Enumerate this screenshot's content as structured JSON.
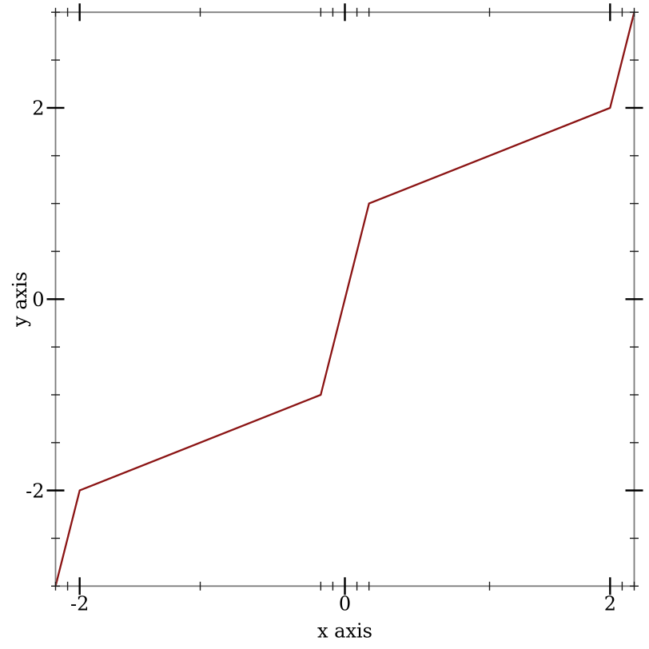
{
  "chart_data": {
    "type": "line",
    "title": "",
    "xlabel": "x axis",
    "ylabel": "y axis",
    "x_range": [
      -3,
      3
    ],
    "y_range": [
      -3,
      3
    ],
    "grid": false,
    "legend": "none",
    "series": [
      {
        "name": "y = x (rendered under x-axis stretch transform)",
        "color": "#8b1414",
        "line_width": 2.3,
        "points": [
          [
            -3,
            -3
          ],
          [
            -2,
            -2
          ],
          [
            -1,
            -1
          ],
          [
            0,
            0
          ],
          [
            1,
            1
          ],
          [
            2,
            2
          ],
          [
            3,
            3
          ]
        ]
      }
    ],
    "x_axis": {
      "label": "x axis",
      "major_ticks": [
        {
          "value": -2,
          "label": "-2"
        },
        {
          "value": 0,
          "label": "0"
        },
        {
          "value": 2,
          "label": "2"
        }
      ],
      "minor_ticks": [
        -3,
        -2.5,
        -1.5,
        -1,
        -0.5,
        0.5,
        1,
        1.5,
        2.5,
        3
      ],
      "transform": {
        "type": "piecewise_linear",
        "description": "axis transform: intervals [-2,-1] and [1,2] stretched 10x relative to the rest",
        "knots": [
          [
            -3,
            0
          ],
          [
            -2,
            0.041667
          ],
          [
            -1,
            0.458333
          ],
          [
            1,
            0.541667
          ],
          [
            2,
            0.958333
          ],
          [
            3,
            1
          ]
        ]
      },
      "far_ticks_mirrored": true
    },
    "y_axis": {
      "label": "y axis",
      "major_ticks": [
        {
          "value": -2,
          "label": "-2"
        },
        {
          "value": 0,
          "label": "0"
        },
        {
          "value": 2,
          "label": "2"
        }
      ],
      "minor_ticks": [
        -3,
        -2.5,
        -1.5,
        -1,
        -0.5,
        0.5,
        1,
        1.5,
        2.5,
        3
      ],
      "transform": {
        "type": "linear"
      },
      "far_ticks_mirrored": true
    },
    "colors": {
      "background": "#ffffff",
      "border": "#7a7a7a",
      "major_tick": "#000000",
      "minor_tick": "#1c1c1c",
      "text": "#000000",
      "line": "#8b1414"
    }
  }
}
